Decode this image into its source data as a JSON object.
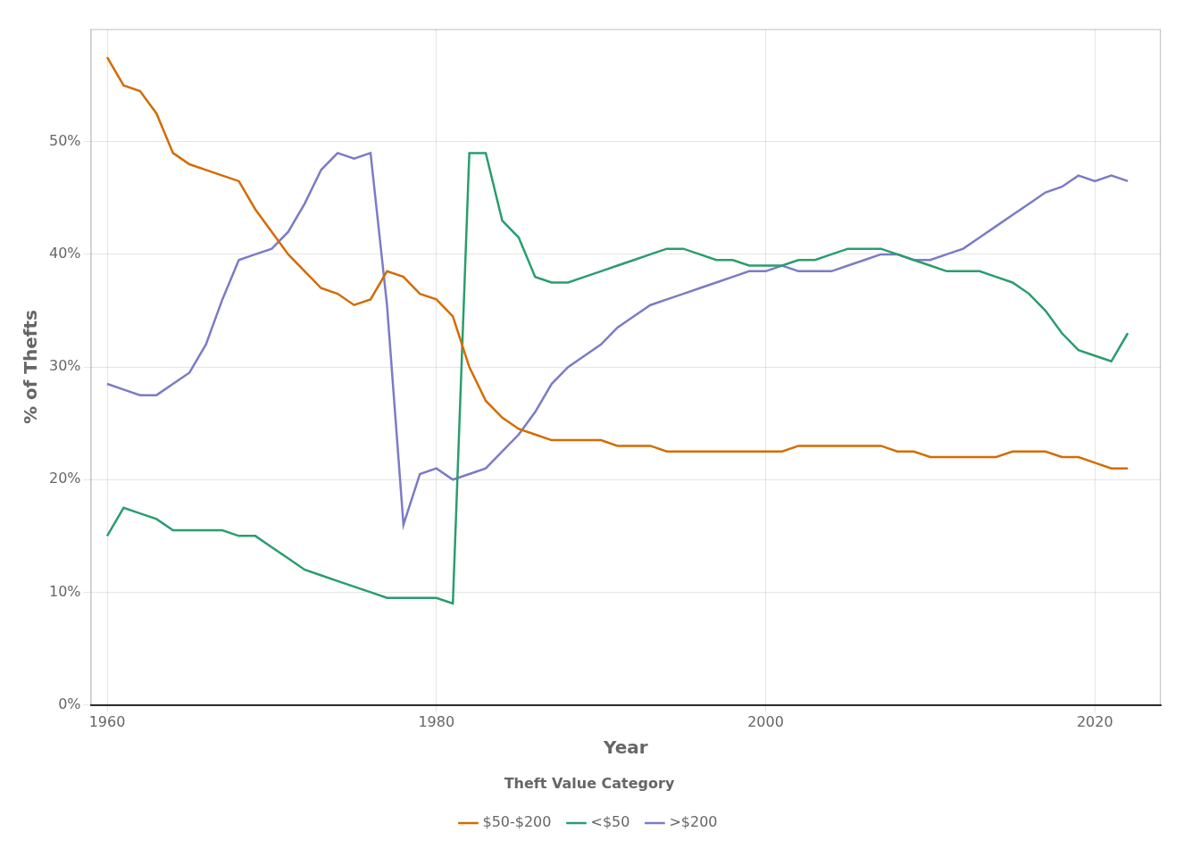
{
  "chart_data": {
    "type": "line",
    "xlabel": "Year",
    "ylabel": "% of Thefts",
    "legend_title": "Theft Value Category",
    "x": [
      1960,
      1961,
      1962,
      1963,
      1964,
      1965,
      1966,
      1967,
      1968,
      1969,
      1970,
      1971,
      1972,
      1973,
      1974,
      1975,
      1976,
      1977,
      1978,
      1979,
      1980,
      1981,
      1982,
      1983,
      1984,
      1985,
      1986,
      1987,
      1988,
      1989,
      1990,
      1991,
      1992,
      1993,
      1994,
      1995,
      1996,
      1997,
      1998,
      1999,
      2000,
      2001,
      2002,
      2003,
      2004,
      2005,
      2006,
      2007,
      2008,
      2009,
      2010,
      2011,
      2012,
      2013,
      2014,
      2015,
      2016,
      2017,
      2018,
      2019,
      2020,
      2021,
      2022
    ],
    "series": [
      {
        "name": "$50-$200",
        "color": "#d46c00",
        "values": [
          57.5,
          55.0,
          54.5,
          52.5,
          49.0,
          48.0,
          47.5,
          47.0,
          46.5,
          44.0,
          42.0,
          40.0,
          38.5,
          37.0,
          36.5,
          35.5,
          36.0,
          38.5,
          38.0,
          36.5,
          36.0,
          34.5,
          30.0,
          27.0,
          25.5,
          24.5,
          24.0,
          23.5,
          23.5,
          23.5,
          23.5,
          23.0,
          23.0,
          23.0,
          22.5,
          22.5,
          22.5,
          22.5,
          22.5,
          22.5,
          22.5,
          22.5,
          23.0,
          23.0,
          23.0,
          23.0,
          23.0,
          23.0,
          22.5,
          22.5,
          22.0,
          22.0,
          22.0,
          22.0,
          22.0,
          22.5,
          22.5,
          22.5,
          22.0,
          22.0,
          21.5,
          21.0,
          21.0
        ]
      },
      {
        "name": "<$50",
        "color": "#2a9d6e",
        "values": [
          15.0,
          17.5,
          17.0,
          16.5,
          15.5,
          15.5,
          15.5,
          15.5,
          15.0,
          15.0,
          14.0,
          13.0,
          12.0,
          11.5,
          11.0,
          10.5,
          10.0,
          9.5,
          9.5,
          9.5,
          9.5,
          9.0,
          49.0,
          49.0,
          43.0,
          41.5,
          38.0,
          37.5,
          37.5,
          38.0,
          38.5,
          39.0,
          39.5,
          40.0,
          40.5,
          40.5,
          40.0,
          39.5,
          39.5,
          39.0,
          39.0,
          39.0,
          39.5,
          39.5,
          40.0,
          40.5,
          40.5,
          40.5,
          40.0,
          39.5,
          39.0,
          38.5,
          38.5,
          38.5,
          38.0,
          37.5,
          36.5,
          35.0,
          33.0,
          31.5,
          31.0,
          30.5,
          33.0
        ]
      },
      {
        "name": ">$200",
        "color": "#7b7bc8",
        "values": [
          28.5,
          28.0,
          27.5,
          27.5,
          28.5,
          29.5,
          32.0,
          36.0,
          39.5,
          40.0,
          40.5,
          42.0,
          44.5,
          47.5,
          49.0,
          48.5,
          49.0,
          35.5,
          16.0,
          20.5,
          21.0,
          20.0,
          20.5,
          21.0,
          22.5,
          24.0,
          26.0,
          28.5,
          30.0,
          31.0,
          32.0,
          33.5,
          34.5,
          35.5,
          36.0,
          36.5,
          37.0,
          37.5,
          38.0,
          38.5,
          38.5,
          39.0,
          38.5,
          38.5,
          38.5,
          39.0,
          39.5,
          40.0,
          40.0,
          39.5,
          39.5,
          40.0,
          40.5,
          41.5,
          42.5,
          43.5,
          44.5,
          45.5,
          46.0,
          47.0,
          46.5,
          47.0,
          46.5
        ]
      }
    ],
    "xlim": [
      1959,
      2024
    ],
    "ylim": [
      0,
      60
    ],
    "xticks": [
      1960,
      1980,
      2000,
      2020
    ],
    "yticks": [
      {
        "value": 0,
        "label": "0%"
      },
      {
        "value": 10,
        "label": "10%"
      },
      {
        "value": 20,
        "label": "20%"
      },
      {
        "value": 30,
        "label": "30%"
      },
      {
        "value": 40,
        "label": "40%"
      },
      {
        "value": 50,
        "label": "50%"
      }
    ],
    "grid": true,
    "legend": "bottom"
  }
}
